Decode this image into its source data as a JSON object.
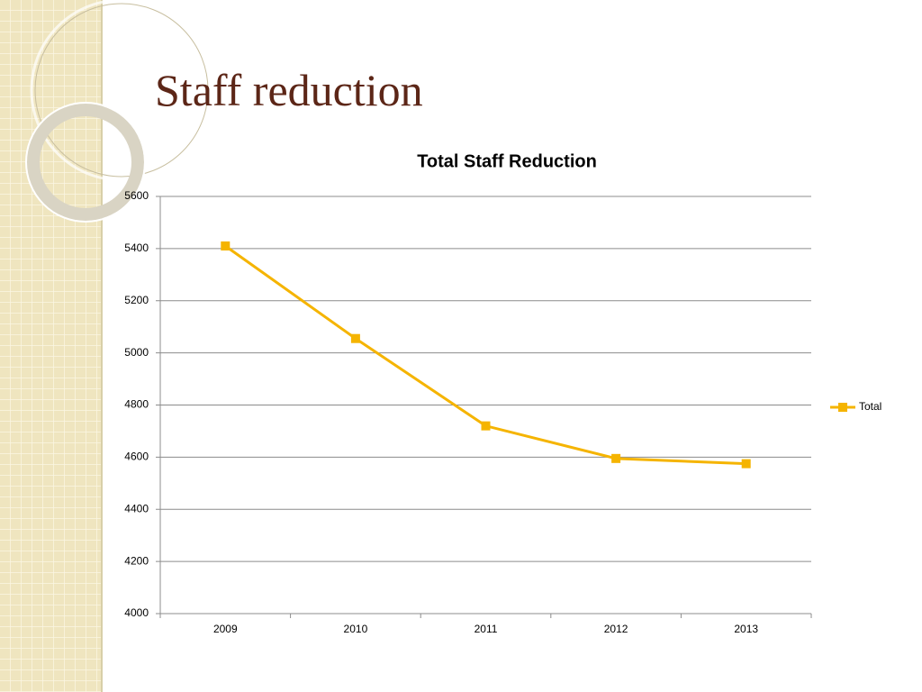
{
  "slide": {
    "title": "Staff reduction"
  },
  "chart_data": {
    "type": "line",
    "title": "Total Staff Reduction",
    "categories": [
      "2009",
      "2010",
      "2011",
      "2012",
      "2013"
    ],
    "series": [
      {
        "name": "Total",
        "color": "#f5b400",
        "values": [
          5410,
          5055,
          4720,
          4595,
          4575
        ]
      }
    ],
    "ylim": [
      4000,
      5600
    ],
    "yticks": [
      4000,
      4200,
      4400,
      4600,
      4800,
      5000,
      5200,
      5400,
      5600
    ],
    "grid": true,
    "legend": "right"
  }
}
